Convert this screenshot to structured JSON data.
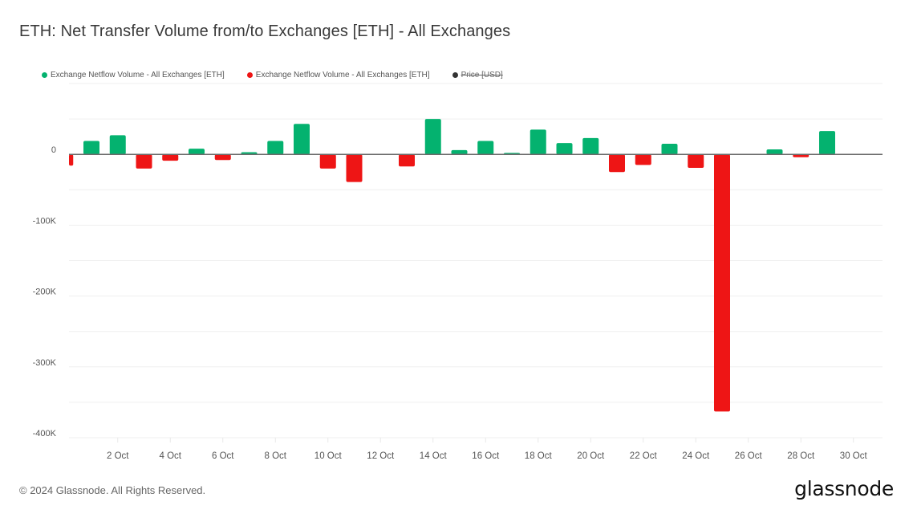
{
  "header": {
    "title": "ETH: Net Transfer Volume from/to Exchanges [ETH] - All Exchanges"
  },
  "legend": [
    {
      "label": "Exchange Netflow Volume - All Exchanges [ETH]",
      "color": "#04b26f",
      "enabled": true
    },
    {
      "label": "Exchange Netflow Volume - All Exchanges [ETH]",
      "color": "#ee1515",
      "enabled": true
    },
    {
      "label": "Price [USD]",
      "color": "#333333",
      "enabled": false
    }
  ],
  "footer": {
    "copyright": "© 2024 Glassnode. All Rights Reserved.",
    "logo": "glassnode"
  },
  "colors": {
    "positive": "#04b26f",
    "negative": "#ee1515",
    "zero_line": "#6b6b6b",
    "grid": "#efefef"
  },
  "chart_data": {
    "type": "bar",
    "title": "ETH: Net Transfer Volume from/to Exchanges [ETH] - All Exchanges",
    "xlabel": "",
    "ylabel": "",
    "ylim": [
      -400000,
      100000
    ],
    "y_ticks": [
      0,
      -100000,
      -200000,
      -300000,
      -400000
    ],
    "y_tick_labels": [
      "0",
      "-100K",
      "-200K",
      "-300K",
      "-400K"
    ],
    "x_tick_labels": [
      "2 Oct",
      "4 Oct",
      "6 Oct",
      "8 Oct",
      "10 Oct",
      "12 Oct",
      "14 Oct",
      "16 Oct",
      "18 Oct",
      "20 Oct",
      "22 Oct",
      "24 Oct",
      "26 Oct",
      "28 Oct",
      "30 Oct"
    ],
    "grid": true,
    "legend_position": "top-left",
    "categories": [
      "30 Sep",
      "1 Oct",
      "2 Oct",
      "3 Oct",
      "4 Oct",
      "5 Oct",
      "6 Oct",
      "7 Oct",
      "8 Oct",
      "9 Oct",
      "10 Oct",
      "11 Oct",
      "12 Oct",
      "13 Oct",
      "14 Oct",
      "15 Oct",
      "16 Oct",
      "17 Oct",
      "18 Oct",
      "19 Oct",
      "20 Oct",
      "21 Oct",
      "22 Oct",
      "23 Oct",
      "24 Oct",
      "25 Oct",
      "26 Oct",
      "27 Oct",
      "28 Oct",
      "29 Oct"
    ],
    "series": [
      {
        "name": "Exchange Netflow Volume - All Exchanges [ETH]",
        "values": [
          -16000,
          19000,
          27000,
          -20000,
          -9000,
          8000,
          -8000,
          3000,
          19000,
          43000,
          -20000,
          -39000,
          0,
          -17000,
          50000,
          6000,
          19000,
          2000,
          35000,
          16000,
          23000,
          -25000,
          -15000,
          15000,
          -19000,
          -363000,
          0,
          7000,
          -4000,
          33000
        ]
      }
    ]
  }
}
